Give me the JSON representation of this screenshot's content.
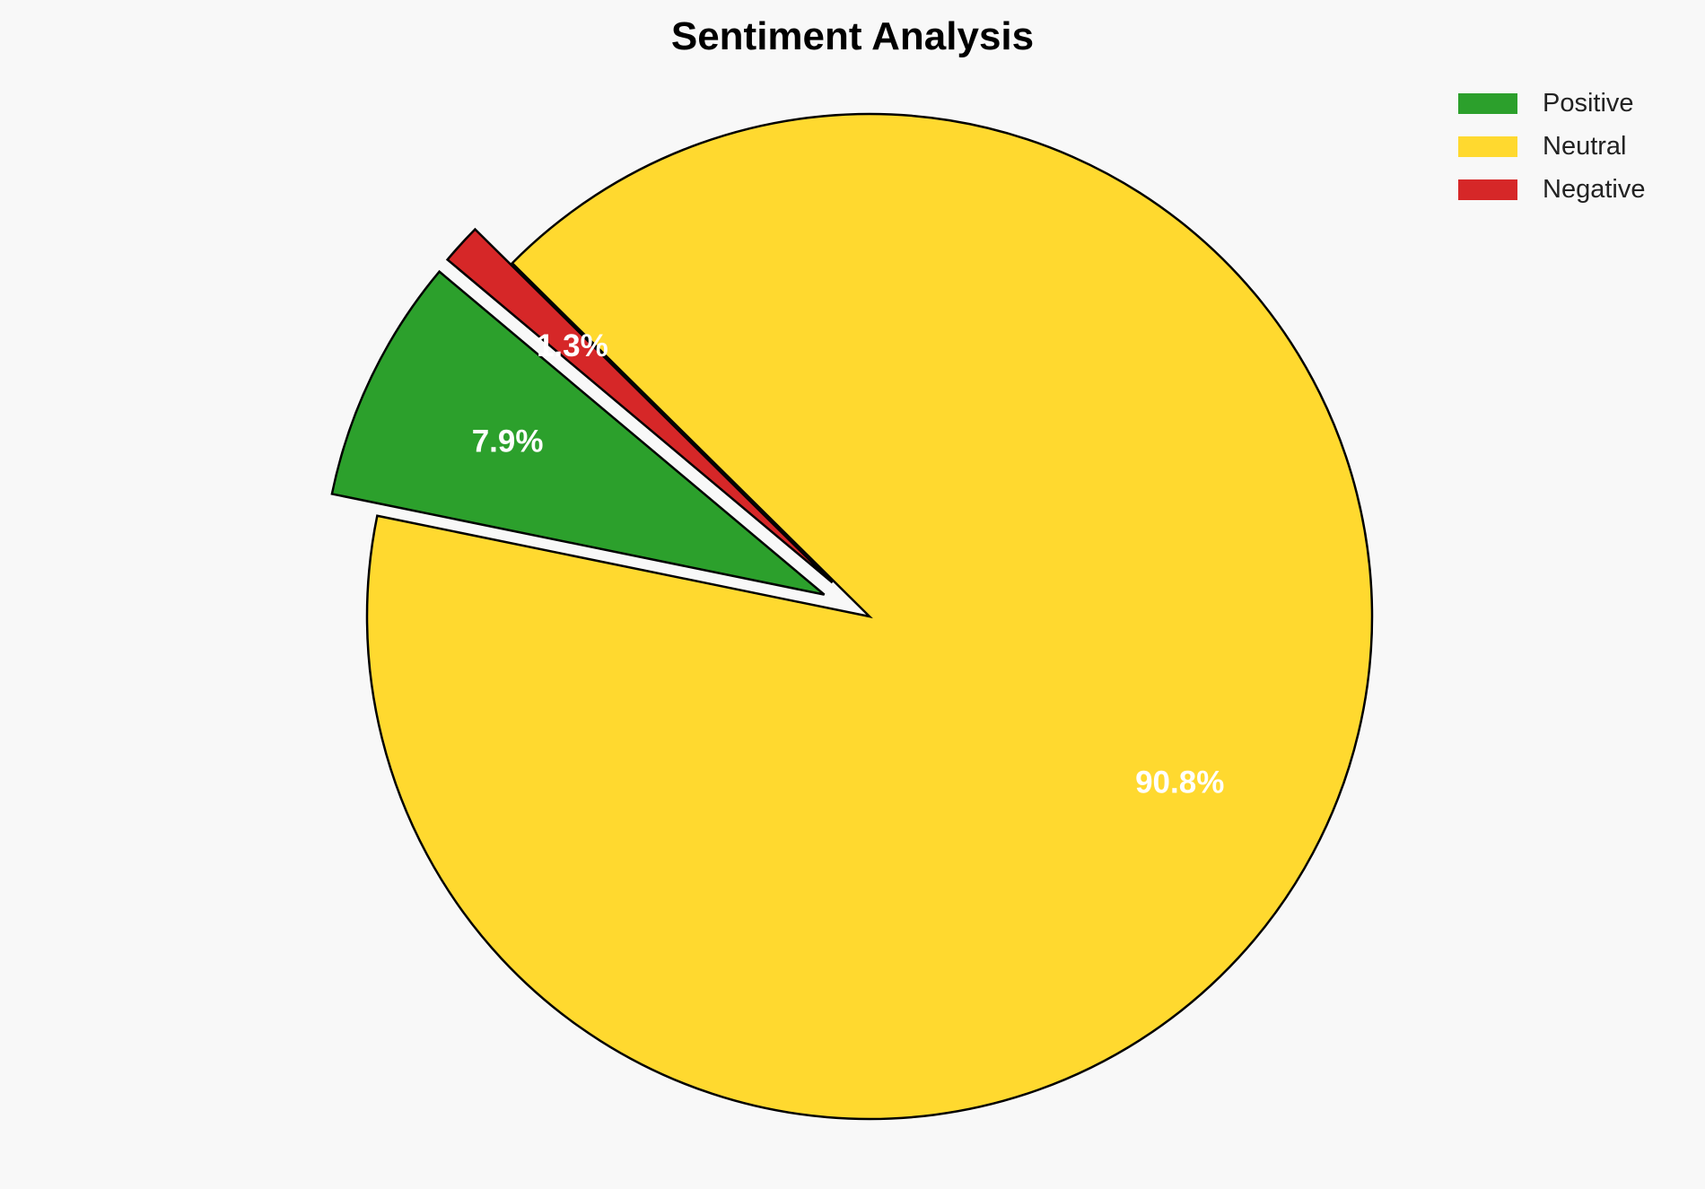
{
  "chart_data": {
    "type": "pie",
    "title": "Sentiment Analysis",
    "categories": [
      "Positive",
      "Neutral",
      "Negative"
    ],
    "values": [
      7.9,
      90.8,
      1.3
    ],
    "labels": [
      "7.9%",
      "90.8%",
      "1.3%"
    ],
    "colors": [
      "#2ca02c",
      "#ffd92f",
      "#d62728"
    ],
    "exploded": [
      true,
      false,
      true
    ],
    "start_angle_deg": 140,
    "direction": "counterclockwise",
    "legend": {
      "placement": "top-right",
      "entries": [
        "Positive",
        "Neutral",
        "Negative"
      ]
    }
  }
}
